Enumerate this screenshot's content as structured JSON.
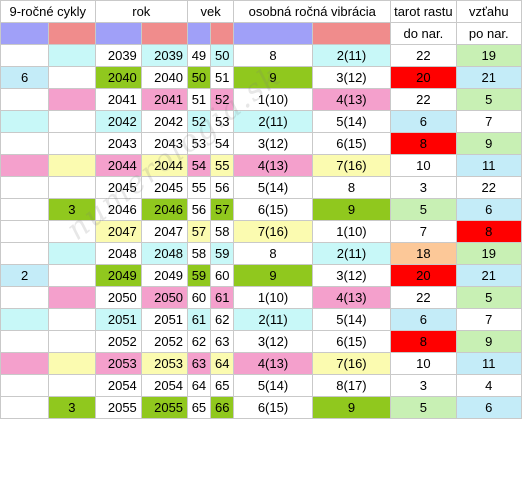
{
  "headers": {
    "cycles": "9-ročné cykly",
    "year": "rok",
    "age": "vek",
    "vibration": "osobná ročná vibrácia",
    "tarot_growth": "tarot rastu",
    "tarot_rel": "vzťahu",
    "to_birthday": "do nar.",
    "from_birthday": "po nar."
  },
  "colors": {
    "purple": "#a0a0f8",
    "salmon": "#f08c8c",
    "cyan": "#c8f8f8",
    "green": "#90c81e",
    "pink": "#f4a0cc",
    "yellow": "#fbfbb0",
    "lightblue": "#c4ecf8",
    "red": "#ff0000",
    "peach": "#fcc898",
    "lightgreen": "#c8f0b4",
    "blue": "#cdd6f4",
    "white": "#ffffff"
  },
  "rows": [
    {
      "c1": "",
      "c2": "",
      "y1": "2039",
      "y2": "2039",
      "a1": "49",
      "a2": "50",
      "v1": "8",
      "v2": "2(11)",
      "t1": "22",
      "t2": "19",
      "bg": {
        "c1": "white",
        "c2": "cyan",
        "y1": "white",
        "y2": "cyan",
        "a1": "white",
        "a2": "cyan",
        "v1": "white",
        "v2": "cyan",
        "t1": "white",
        "t2": "lightgreen"
      }
    },
    {
      "c1": "6",
      "c2": "",
      "y1": "2040",
      "y2": "2040",
      "a1": "50",
      "a2": "51",
      "v1": "9",
      "v2": "3(12)",
      "t1": "20",
      "t2": "21",
      "bg": {
        "c1": "lightblue",
        "c2": "white",
        "y1": "green",
        "y2": "white",
        "a1": "green",
        "a2": "white",
        "v1": "green",
        "v2": "white",
        "t1": "red",
        "t2": "lightblue"
      }
    },
    {
      "c1": "",
      "c2": "",
      "y1": "2041",
      "y2": "2041",
      "a1": "51",
      "a2": "52",
      "v1": "1(10)",
      "v2": "4(13)",
      "t1": "22",
      "t2": "5",
      "bg": {
        "c1": "white",
        "c2": "pink",
        "y1": "white",
        "y2": "pink",
        "a1": "white",
        "a2": "pink",
        "v1": "white",
        "v2": "pink",
        "t1": "white",
        "t2": "lightgreen"
      }
    },
    {
      "c1": "",
      "c2": "",
      "y1": "2042",
      "y2": "2042",
      "a1": "52",
      "a2": "53",
      "v1": "2(11)",
      "v2": "5(14)",
      "t1": "6",
      "t2": "7",
      "bg": {
        "c1": "cyan",
        "c2": "white",
        "y1": "cyan",
        "y2": "white",
        "a1": "cyan",
        "a2": "white",
        "v1": "cyan",
        "v2": "white",
        "t1": "lightblue",
        "t2": "white"
      }
    },
    {
      "c1": "",
      "c2": "",
      "y1": "2043",
      "y2": "2043",
      "a1": "53",
      "a2": "54",
      "v1": "3(12)",
      "v2": "6(15)",
      "t1": "8",
      "t2": "9",
      "bg": {
        "c1": "white",
        "c2": "white",
        "y1": "white",
        "y2": "white",
        "a1": "white",
        "a2": "white",
        "v1": "white",
        "v2": "white",
        "t1": "red",
        "t2": "lightgreen"
      }
    },
    {
      "c1": "",
      "c2": "",
      "y1": "2044",
      "y2": "2044",
      "a1": "54",
      "a2": "55",
      "v1": "4(13)",
      "v2": "7(16)",
      "t1": "10",
      "t2": "11",
      "bg": {
        "c1": "pink",
        "c2": "yellow",
        "y1": "pink",
        "y2": "yellow",
        "a1": "pink",
        "a2": "yellow",
        "v1": "pink",
        "v2": "yellow",
        "t1": "white",
        "t2": "lightblue"
      }
    },
    {
      "c1": "",
      "c2": "",
      "y1": "2045",
      "y2": "2045",
      "a1": "55",
      "a2": "56",
      "v1": "5(14)",
      "v2": "8",
      "t1": "3",
      "t2": "22",
      "bg": {
        "c1": "white",
        "c2": "white",
        "y1": "white",
        "y2": "white",
        "a1": "white",
        "a2": "white",
        "v1": "white",
        "v2": "white",
        "t1": "white",
        "t2": "white"
      }
    },
    {
      "c1": "",
      "c2": "3",
      "y1": "2046",
      "y2": "2046",
      "a1": "56",
      "a2": "57",
      "v1": "6(15)",
      "v2": "9",
      "t1": "5",
      "t2": "6",
      "bg": {
        "c1": "white",
        "c2": "green",
        "y1": "white",
        "y2": "green",
        "a1": "white",
        "a2": "green",
        "v1": "white",
        "v2": "green",
        "t1": "lightgreen",
        "t2": "lightblue"
      }
    },
    {
      "c1": "",
      "c2": "",
      "y1": "2047",
      "y2": "2047",
      "a1": "57",
      "a2": "58",
      "v1": "7(16)",
      "v2": "1(10)",
      "t1": "7",
      "t2": "8",
      "bg": {
        "c1": "white",
        "c2": "white",
        "y1": "yellow",
        "y2": "white",
        "a1": "yellow",
        "a2": "white",
        "v1": "yellow",
        "v2": "white",
        "t1": "white",
        "t2": "red"
      }
    },
    {
      "c1": "",
      "c2": "",
      "y1": "2048",
      "y2": "2048",
      "a1": "58",
      "a2": "59",
      "v1": "8",
      "v2": "2(11)",
      "t1": "18",
      "t2": "19",
      "bg": {
        "c1": "white",
        "c2": "cyan",
        "y1": "white",
        "y2": "cyan",
        "a1": "white",
        "a2": "cyan",
        "v1": "white",
        "v2": "cyan",
        "t1": "peach",
        "t2": "lightgreen"
      }
    },
    {
      "c1": "2",
      "c2": "",
      "y1": "2049",
      "y2": "2049",
      "a1": "59",
      "a2": "60",
      "v1": "9",
      "v2": "3(12)",
      "t1": "20",
      "t2": "21",
      "bg": {
        "c1": "lightblue",
        "c2": "white",
        "y1": "green",
        "y2": "white",
        "a1": "green",
        "a2": "white",
        "v1": "green",
        "v2": "white",
        "t1": "red",
        "t2": "lightblue"
      }
    },
    {
      "c1": "",
      "c2": "",
      "y1": "2050",
      "y2": "2050",
      "a1": "60",
      "a2": "61",
      "v1": "1(10)",
      "v2": "4(13)",
      "t1": "22",
      "t2": "5",
      "bg": {
        "c1": "white",
        "c2": "pink",
        "y1": "white",
        "y2": "pink",
        "a1": "white",
        "a2": "pink",
        "v1": "white",
        "v2": "pink",
        "t1": "white",
        "t2": "lightgreen"
      }
    },
    {
      "c1": "",
      "c2": "",
      "y1": "2051",
      "y2": "2051",
      "a1": "61",
      "a2": "62",
      "v1": "2(11)",
      "v2": "5(14)",
      "t1": "6",
      "t2": "7",
      "bg": {
        "c1": "cyan",
        "c2": "white",
        "y1": "cyan",
        "y2": "white",
        "a1": "cyan",
        "a2": "white",
        "v1": "cyan",
        "v2": "white",
        "t1": "lightblue",
        "t2": "white"
      }
    },
    {
      "c1": "",
      "c2": "",
      "y1": "2052",
      "y2": "2052",
      "a1": "62",
      "a2": "63",
      "v1": "3(12)",
      "v2": "6(15)",
      "t1": "8",
      "t2": "9",
      "bg": {
        "c1": "white",
        "c2": "white",
        "y1": "white",
        "y2": "white",
        "a1": "white",
        "a2": "white",
        "v1": "white",
        "v2": "white",
        "t1": "red",
        "t2": "lightgreen"
      }
    },
    {
      "c1": "",
      "c2": "",
      "y1": "2053",
      "y2": "2053",
      "a1": "63",
      "a2": "64",
      "v1": "4(13)",
      "v2": "7(16)",
      "t1": "10",
      "t2": "11",
      "bg": {
        "c1": "pink",
        "c2": "yellow",
        "y1": "pink",
        "y2": "yellow",
        "a1": "pink",
        "a2": "yellow",
        "v1": "pink",
        "v2": "yellow",
        "t1": "white",
        "t2": "lightblue"
      }
    },
    {
      "c1": "",
      "c2": "",
      "y1": "2054",
      "y2": "2054",
      "a1": "64",
      "a2": "65",
      "v1": "5(14)",
      "v2": "8(17)",
      "t1": "3",
      "t2": "4",
      "bg": {
        "c1": "white",
        "c2": "white",
        "y1": "white",
        "y2": "white",
        "a1": "white",
        "a2": "white",
        "v1": "white",
        "v2": "white",
        "t1": "white",
        "t2": "white"
      }
    },
    {
      "c1": "",
      "c2": "3",
      "y1": "2055",
      "y2": "2055",
      "a1": "65",
      "a2": "66",
      "v1": "6(15)",
      "v2": "9",
      "t1": "5",
      "t2": "6",
      "bg": {
        "c1": "white",
        "c2": "green",
        "y1": "white",
        "y2": "green",
        "a1": "white",
        "a2": "green",
        "v1": "white",
        "v2": "green",
        "t1": "lightgreen",
        "t2": "lightblue"
      }
    }
  ]
}
